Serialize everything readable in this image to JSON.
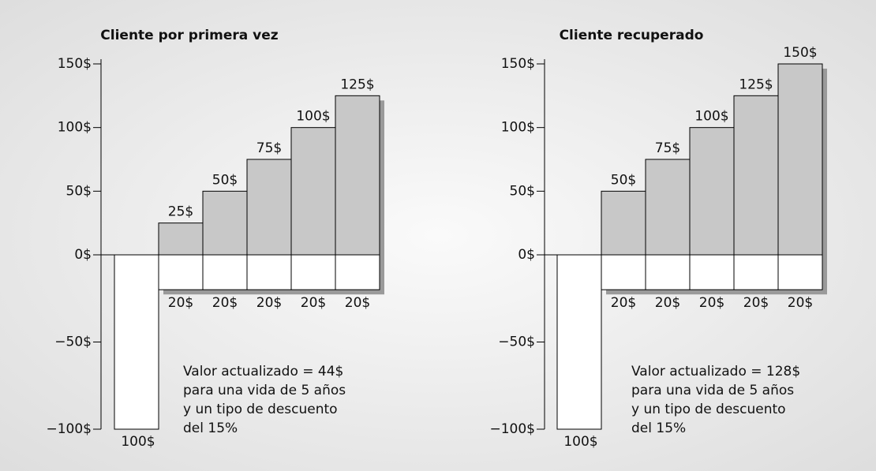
{
  "chart_data": [
    {
      "type": "bar",
      "title": "Cliente por primera vez",
      "ylim": [
        -100,
        150
      ],
      "yticks": [
        {
          "value": 150,
          "label": "150$"
        },
        {
          "value": 100,
          "label": "100$"
        },
        {
          "value": 50,
          "label": "50$"
        },
        {
          "value": 0,
          "label": "0$"
        },
        {
          "value": -50,
          "label": "−50$"
        },
        {
          "value": -100,
          "label": "−100$"
        }
      ],
      "acquisition": {
        "value": 100,
        "value_label": "100$",
        "color": "#ffffff"
      },
      "profits": {
        "values": [
          25,
          50,
          75,
          100,
          125
        ],
        "value_labels": [
          "25$",
          "50$",
          "75$",
          "100$",
          "125$"
        ],
        "color": "#c8c8c8"
      },
      "costs": {
        "values": [
          20,
          20,
          20,
          20,
          20
        ],
        "value_labels": [
          "20$",
          "20$",
          "20$",
          "20$",
          "20$"
        ],
        "color": "#ffffff"
      },
      "annotation": [
        "Valor actualizado = 44$",
        "para una vida de 5 años",
        "y un tipo de descuento",
        "del 15%"
      ]
    },
    {
      "type": "bar",
      "title": "Cliente recuperado",
      "ylim": [
        -100,
        150
      ],
      "yticks": [
        {
          "value": 150,
          "label": "150$"
        },
        {
          "value": 100,
          "label": "100$"
        },
        {
          "value": 50,
          "label": "50$"
        },
        {
          "value": 0,
          "label": "0$"
        },
        {
          "value": -50,
          "label": "−50$"
        },
        {
          "value": -100,
          "label": "−100$"
        }
      ],
      "acquisition": {
        "value": 100,
        "value_label": "100$",
        "color": "#ffffff"
      },
      "profits": {
        "values": [
          50,
          75,
          100,
          125,
          150
        ],
        "value_labels": [
          "50$",
          "75$",
          "100$",
          "125$",
          "150$"
        ],
        "color": "#c8c8c8"
      },
      "costs": {
        "values": [
          20,
          20,
          20,
          20,
          20
        ],
        "value_labels": [
          "20$",
          "20$",
          "20$",
          "20$",
          "20$"
        ],
        "color": "#ffffff"
      },
      "annotation": [
        "Valor actualizado = 128$",
        "para una vida de 5 años",
        "y un tipo de descuento",
        "del 15%"
      ]
    }
  ]
}
